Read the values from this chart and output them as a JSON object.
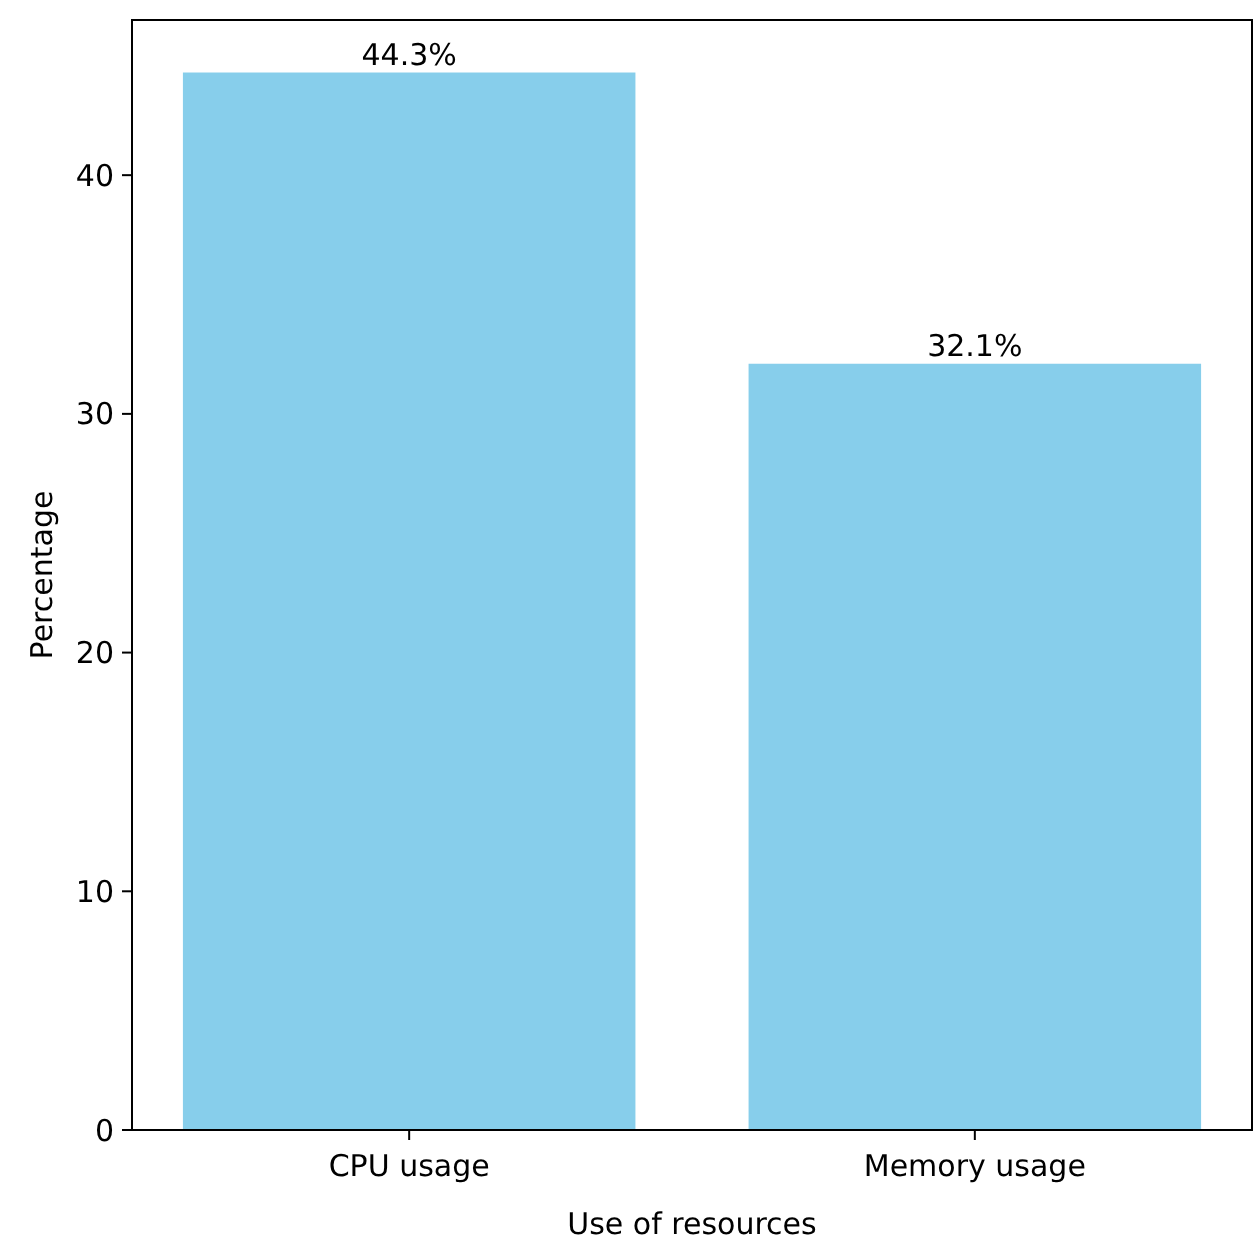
{
  "chart_data": {
    "type": "bar",
    "xlabel": "Use of resources",
    "ylabel": "Percentage",
    "categories": [
      "CPU usage",
      "Memory usage"
    ],
    "values": [
      44.3,
      32.1
    ],
    "value_labels": [
      "44.3%",
      "32.1%"
    ],
    "color": "#87ceeb",
    "ylim": [
      0,
      46.5
    ],
    "yticks": [
      0,
      10,
      20,
      30,
      40
    ],
    "grid": false
  }
}
